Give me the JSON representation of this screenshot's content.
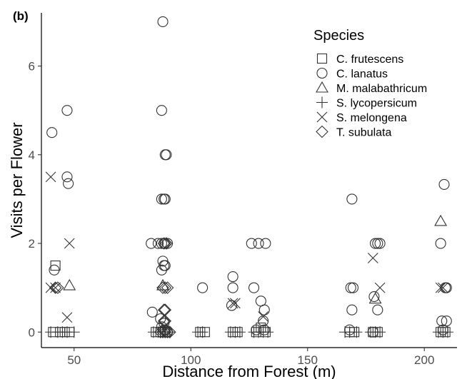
{
  "chart_data": {
    "type": "scatter",
    "panel_label": "(b)",
    "xlabel": "Distance from Forest (m)",
    "ylabel": "Visits per Flower",
    "xlim": [
      36,
      214
    ],
    "ylim": [
      -0.35,
      7.2
    ],
    "x_ticks": [
      50,
      100,
      150,
      200
    ],
    "x_tick_labels": [
      "50",
      "100",
      "150",
      "200"
    ],
    "y_ticks": [
      0,
      2,
      4,
      6
    ],
    "y_tick_labels": [
      "0",
      "2",
      "4",
      "6"
    ],
    "grid": false,
    "legend": {
      "title": "Species",
      "position": "top-right",
      "entries": [
        {
          "label": "C. frutescens",
          "shape": "square"
        },
        {
          "label": "C. lanatus",
          "shape": "circle"
        },
        {
          "label": "M. malabathricum",
          "shape": "triangle"
        },
        {
          "label": "S. lycopersicum",
          "shape": "plus"
        },
        {
          "label": "S. melongena",
          "shape": "cross"
        },
        {
          "label": "T. subulata",
          "shape": "diamond"
        }
      ]
    },
    "series": [
      {
        "name": "C. frutescens",
        "shape": "square",
        "points": [
          [
            42,
            1.5
          ],
          [
            41,
            0
          ],
          [
            44,
            0
          ],
          [
            46,
            0
          ],
          [
            48,
            0
          ],
          [
            85,
            0
          ],
          [
            87,
            0
          ],
          [
            89,
            0
          ],
          [
            104,
            0
          ],
          [
            106,
            0
          ],
          [
            118,
            0
          ],
          [
            120,
            0
          ],
          [
            128,
            0
          ],
          [
            130,
            0.1
          ],
          [
            132,
            0
          ],
          [
            168,
            0
          ],
          [
            170,
            0
          ],
          [
            178,
            0
          ],
          [
            180,
            0
          ],
          [
            207,
            0
          ],
          [
            209,
            0
          ]
        ]
      },
      {
        "name": "C. lanatus",
        "shape": "circle",
        "points": [
          [
            40.5,
            4.5
          ],
          [
            41.5,
            1.4
          ],
          [
            47,
            5
          ],
          [
            47,
            3.5
          ],
          [
            47.5,
            3.35
          ],
          [
            88,
            7
          ],
          [
            87.5,
            5
          ],
          [
            89,
            4
          ],
          [
            89.5,
            4
          ],
          [
            87.5,
            3
          ],
          [
            88.5,
            3
          ],
          [
            89,
            3
          ],
          [
            83,
            2
          ],
          [
            86,
            2
          ],
          [
            87.5,
            2
          ],
          [
            88.5,
            2
          ],
          [
            89,
            2
          ],
          [
            90,
            2
          ],
          [
            88,
            1.6
          ],
          [
            87.5,
            1.4
          ],
          [
            88.5,
            1.5
          ],
          [
            89,
            1.5
          ],
          [
            83.5,
            0.45
          ],
          [
            87,
            0.3
          ],
          [
            87.5,
            0.12
          ],
          [
            88.5,
            0.05
          ],
          [
            89,
            0.05
          ],
          [
            90,
            0
          ],
          [
            88.5,
            0.2
          ],
          [
            105,
            1
          ],
          [
            118,
            1.25
          ],
          [
            118,
            1
          ],
          [
            117.5,
            0.6
          ],
          [
            126,
            2
          ],
          [
            129,
            2
          ],
          [
            132,
            2
          ],
          [
            127,
            1
          ],
          [
            130,
            0.7
          ],
          [
            131.5,
            0.5
          ],
          [
            131,
            0.25
          ],
          [
            131.5,
            0.05
          ],
          [
            128,
            0.05
          ],
          [
            169,
            3
          ],
          [
            168.5,
            1
          ],
          [
            169.5,
            1
          ],
          [
            169,
            0.5
          ],
          [
            168,
            0.05
          ],
          [
            179,
            2
          ],
          [
            180,
            2
          ],
          [
            181,
            2
          ],
          [
            178.5,
            0.8
          ],
          [
            180,
            0.5
          ],
          [
            178,
            0
          ],
          [
            207,
            2
          ],
          [
            208.5,
            3.33
          ],
          [
            209,
            1
          ],
          [
            209.5,
            1
          ],
          [
            207.5,
            0.25
          ],
          [
            209.5,
            0.25
          ],
          [
            208,
            0.05
          ]
        ]
      },
      {
        "name": "M. malabathricum",
        "shape": "triangle",
        "points": [
          [
            48,
            1.05
          ],
          [
            88,
            1.05
          ],
          [
            179,
            0.75
          ],
          [
            207,
            2.5
          ]
        ]
      },
      {
        "name": "S. lycopersicum",
        "shape": "plus",
        "points": [
          [
            40,
            0
          ],
          [
            43,
            0
          ],
          [
            45,
            0
          ],
          [
            47,
            0
          ],
          [
            50,
            0
          ],
          [
            84,
            0
          ],
          [
            86,
            0
          ],
          [
            88,
            0
          ],
          [
            91,
            0
          ],
          [
            103,
            0
          ],
          [
            105,
            0
          ],
          [
            117,
            0
          ],
          [
            119,
            0
          ],
          [
            121,
            0
          ],
          [
            127,
            0
          ],
          [
            129,
            0
          ],
          [
            131,
            0
          ],
          [
            133,
            0
          ],
          [
            166,
            0
          ],
          [
            168,
            0
          ],
          [
            171,
            0
          ],
          [
            177,
            0
          ],
          [
            179,
            0
          ],
          [
            181,
            0
          ],
          [
            206,
            0
          ],
          [
            208,
            0
          ],
          [
            210,
            0
          ]
        ]
      },
      {
        "name": "S. melongena",
        "shape": "cross",
        "points": [
          [
            40,
            3.5
          ],
          [
            48,
            2
          ],
          [
            47,
            0.33
          ],
          [
            40,
            1
          ],
          [
            42,
            1
          ],
          [
            118,
            0.65
          ],
          [
            119,
            0.65
          ],
          [
            131,
            0.35
          ],
          [
            178,
            1.67
          ],
          [
            181,
            1
          ],
          [
            207,
            1
          ],
          [
            208,
            1
          ]
        ]
      },
      {
        "name": "T. subulata",
        "shape": "diamond",
        "points": [
          [
            42,
            1
          ],
          [
            43,
            1
          ],
          [
            88.5,
            2
          ],
          [
            89.5,
            2
          ],
          [
            88,
            1
          ],
          [
            89,
            1
          ],
          [
            90,
            1
          ],
          [
            88.5,
            0.5
          ],
          [
            89,
            0.5
          ],
          [
            88.5,
            0.25
          ],
          [
            89,
            0.25
          ],
          [
            87,
            0
          ],
          [
            88,
            0
          ],
          [
            89,
            0
          ],
          [
            90,
            0
          ],
          [
            91,
            0
          ]
        ]
      }
    ]
  }
}
